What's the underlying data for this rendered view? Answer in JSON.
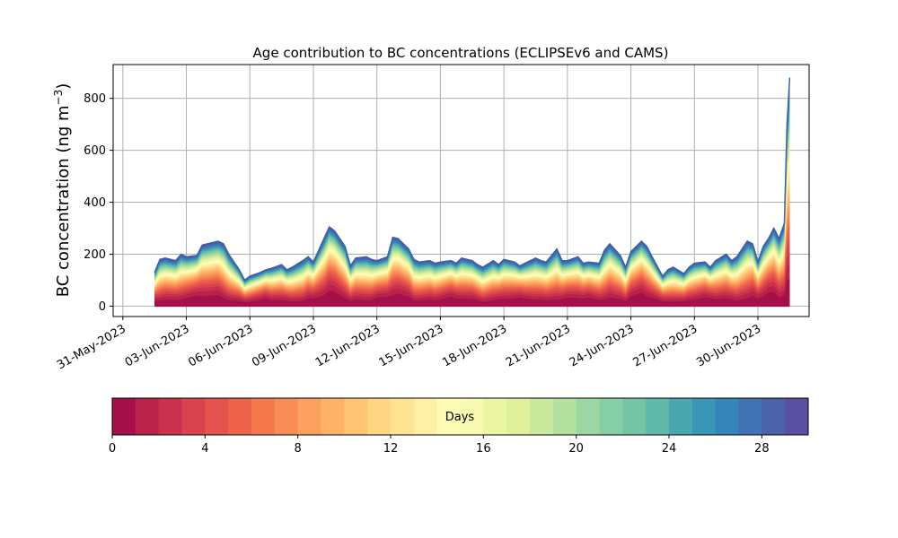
{
  "chart_data": {
    "type": "area",
    "title": "Age contribution to BC concentrations (ECLIPSEv6 and CAMS)",
    "ylabel": "BC concentration (ng m",
    "ylabel_sup": "−3",
    "ylabel_close": ")",
    "xlim": [
      "2023-05-30T13:00",
      "2023-07-02T10:00"
    ],
    "ylim": [
      -40,
      930
    ],
    "yticks": [
      0,
      200,
      400,
      600,
      800
    ],
    "xticks": [
      "2023-05-31",
      "2023-06-03",
      "2023-06-06",
      "2023-06-09",
      "2023-06-12",
      "2023-06-15",
      "2023-06-18",
      "2023-06-21",
      "2023-06-24",
      "2023-06-27",
      "2023-06-30"
    ],
    "xtick_labels": [
      "31-May-2023",
      "03-Jun-2023",
      "06-Jun-2023",
      "09-Jun-2023",
      "12-Jun-2023",
      "15-Jun-2023",
      "18-Jun-2023",
      "21-Jun-2023",
      "24-Jun-2023",
      "27-Jun-2023",
      "30-Jun-2023"
    ],
    "grid": true,
    "total_series": {
      "name": "",
      "x": [
        "2023-06-01T12:00",
        "2023-06-01T18:00",
        "2023-06-02T00:00",
        "2023-06-02T12:00",
        "2023-06-02T18:00",
        "2023-06-03T00:00",
        "2023-06-03T12:00",
        "2023-06-03T18:00",
        "2023-06-04T00:00",
        "2023-06-04T12:00",
        "2023-06-04T18:00",
        "2023-06-05T00:00",
        "2023-06-05T12:00",
        "2023-06-05T18:00",
        "2023-06-06T00:00",
        "2023-06-06T12:00",
        "2023-06-06T18:00",
        "2023-06-07T00:00",
        "2023-06-07T12:00",
        "2023-06-07T18:00",
        "2023-06-08T00:00",
        "2023-06-08T12:00",
        "2023-06-08T18:00",
        "2023-06-09T00:00",
        "2023-06-09T12:00",
        "2023-06-09T18:00",
        "2023-06-10T00:00",
        "2023-06-10T12:00",
        "2023-06-10T18:00",
        "2023-06-11T00:00",
        "2023-06-11T12:00",
        "2023-06-11T18:00",
        "2023-06-12T00:00",
        "2023-06-12T12:00",
        "2023-06-12T18:00",
        "2023-06-13T00:00",
        "2023-06-13T12:00",
        "2023-06-13T18:00",
        "2023-06-14T00:00",
        "2023-06-14T12:00",
        "2023-06-14T18:00",
        "2023-06-15T00:00",
        "2023-06-15T12:00",
        "2023-06-15T18:00",
        "2023-06-16T00:00",
        "2023-06-16T12:00",
        "2023-06-16T18:00",
        "2023-06-17T00:00",
        "2023-06-17T12:00",
        "2023-06-17T18:00",
        "2023-06-18T00:00",
        "2023-06-18T12:00",
        "2023-06-18T18:00",
        "2023-06-19T00:00",
        "2023-06-19T12:00",
        "2023-06-19T18:00",
        "2023-06-20T00:00",
        "2023-06-20T12:00",
        "2023-06-20T18:00",
        "2023-06-21T00:00",
        "2023-06-21T12:00",
        "2023-06-21T18:00",
        "2023-06-22T00:00",
        "2023-06-22T12:00",
        "2023-06-22T18:00",
        "2023-06-23T00:00",
        "2023-06-23T12:00",
        "2023-06-23T18:00",
        "2023-06-24T00:00",
        "2023-06-24T12:00",
        "2023-06-24T18:00",
        "2023-06-25T00:00",
        "2023-06-25T12:00",
        "2023-06-25T18:00",
        "2023-06-26T00:00",
        "2023-06-26T12:00",
        "2023-06-26T18:00",
        "2023-06-27T00:00",
        "2023-06-27T12:00",
        "2023-06-27T18:00",
        "2023-06-28T00:00",
        "2023-06-28T12:00",
        "2023-06-28T18:00",
        "2023-06-29T00:00",
        "2023-06-29T12:00",
        "2023-06-29T18:00",
        "2023-06-30T00:00",
        "2023-06-30T06:00",
        "2023-06-30T12:00",
        "2023-06-30T18:00",
        "2023-07-01T00:00",
        "2023-07-01T06:00",
        "2023-07-01T09:00",
        "2023-07-01T12:00"
      ],
      "values": [
        130,
        180,
        185,
        175,
        200,
        190,
        195,
        235,
        240,
        250,
        240,
        200,
        140,
        100,
        115,
        130,
        140,
        145,
        160,
        140,
        150,
        175,
        190,
        170,
        260,
        305,
        290,
        230,
        155,
        185,
        190,
        180,
        175,
        190,
        265,
        260,
        220,
        180,
        170,
        175,
        165,
        170,
        175,
        165,
        185,
        175,
        160,
        150,
        175,
        160,
        180,
        170,
        155,
        165,
        185,
        175,
        170,
        220,
        175,
        175,
        190,
        165,
        170,
        165,
        215,
        240,
        195,
        150,
        210,
        250,
        230,
        190,
        115,
        140,
        150,
        125,
        150,
        165,
        170,
        150,
        175,
        200,
        175,
        190,
        250,
        240,
        170,
        230,
        260,
        300,
        260,
        320,
        700,
        880
      ]
    }
  },
  "colorbar": {
    "label": "Days",
    "ticks": [
      0,
      4,
      8,
      12,
      16,
      20,
      24,
      28
    ],
    "range": [
      0,
      30
    ],
    "colors": [
      "#a50f4a",
      "#b8224b",
      "#c9314c",
      "#d9434d",
      "#e4534d",
      "#ee634b",
      "#f47a4e",
      "#f88d56",
      "#fba05e",
      "#fdb268",
      "#fec474",
      "#fed583",
      "#fee393",
      "#fff0a6",
      "#fffcb6",
      "#f7fab0",
      "#ebf6a3",
      "#dff19b",
      "#cae99c",
      "#b4e09f",
      "#9cd7a3",
      "#86cea5",
      "#73c5a6",
      "#60b8a8",
      "#4ba7af",
      "#3a96b6",
      "#3585ba",
      "#3f73b3",
      "#4b61a8",
      "#5a4fa2"
    ]
  }
}
